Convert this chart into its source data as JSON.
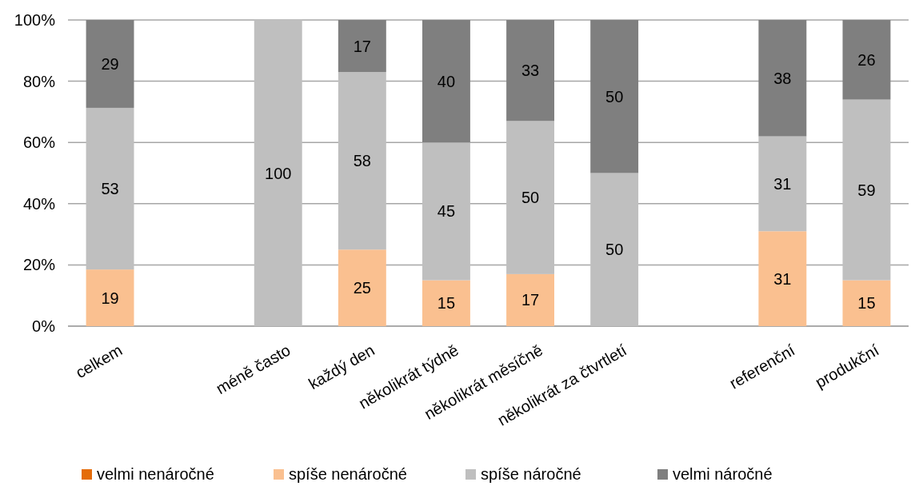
{
  "chart_data": {
    "type": "bar",
    "stacked": true,
    "categories": [
      "celkem",
      null,
      "méně často",
      "každý den",
      "několikrát týdně",
      "několikrát měsíčně",
      "několikrát za čtvrtletí",
      null,
      "referenční",
      "produkční"
    ],
    "series": [
      {
        "name": "velmi nenáročné",
        "color": "#e46c0a",
        "values": [
          null,
          null,
          null,
          null,
          null,
          null,
          null,
          null,
          null,
          null
        ]
      },
      {
        "name": "spíše nenáročné",
        "color": "#fac090",
        "values": [
          18.5,
          null,
          null,
          25,
          15,
          17,
          null,
          null,
          31,
          15
        ],
        "value_labels": [
          "19",
          null,
          null,
          "25",
          "15",
          "17",
          null,
          null,
          "31",
          "15"
        ]
      },
      {
        "name": "spíše náročné",
        "color": "#bfbfbf",
        "values": [
          52.8,
          null,
          100,
          58,
          45,
          50,
          50,
          null,
          31,
          59
        ],
        "value_labels": [
          "53",
          null,
          "100",
          "58",
          "45",
          "50",
          "50",
          null,
          "31",
          "59"
        ]
      },
      {
        "name": "velmi náročné",
        "color": "#7f7f7f",
        "values": [
          28.7,
          null,
          null,
          17,
          40,
          33,
          50,
          null,
          38,
          26
        ],
        "value_labels": [
          "29",
          null,
          null,
          "17",
          "40",
          "33",
          "50",
          null,
          "38",
          "26"
        ]
      }
    ],
    "ylim": [
      0,
      100
    ],
    "yticks": [
      {
        "value": 0,
        "label": "0%"
      },
      {
        "value": 20,
        "label": "20%"
      },
      {
        "value": 40,
        "label": "40%"
      },
      {
        "value": 60,
        "label": "60%"
      },
      {
        "value": 80,
        "label": "80%"
      },
      {
        "value": 100,
        "label": "100%"
      }
    ],
    "grid": "y",
    "legend": "bottom"
  }
}
